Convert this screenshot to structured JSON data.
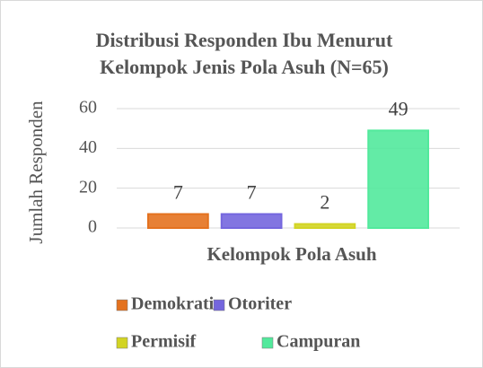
{
  "chart_data": {
    "type": "bar",
    "title": [
      "Distribusi Responden Ibu Menurut",
      "Kelompok Jenis Pola Asuh (N=65)"
    ],
    "xlabel": "Kelompok Pola Asuh",
    "ylabel": "Jumlah Responden",
    "categories": [
      null
    ],
    "series": [
      {
        "name": "Demokratis",
        "color": "#e4721f",
        "values": [
          7
        ]
      },
      {
        "name": "Otoriter",
        "color": "#7466de",
        "values": [
          7
        ]
      },
      {
        "name": "Permisif",
        "color": "#d2d424",
        "values": [
          2
        ]
      },
      {
        "name": "Campuran",
        "color": "#52e99c",
        "values": [
          49
        ]
      }
    ],
    "ylim": [
      0,
      60
    ],
    "yticks": [
      0,
      20,
      40,
      60
    ],
    "grid": true,
    "legend": "bottom"
  }
}
